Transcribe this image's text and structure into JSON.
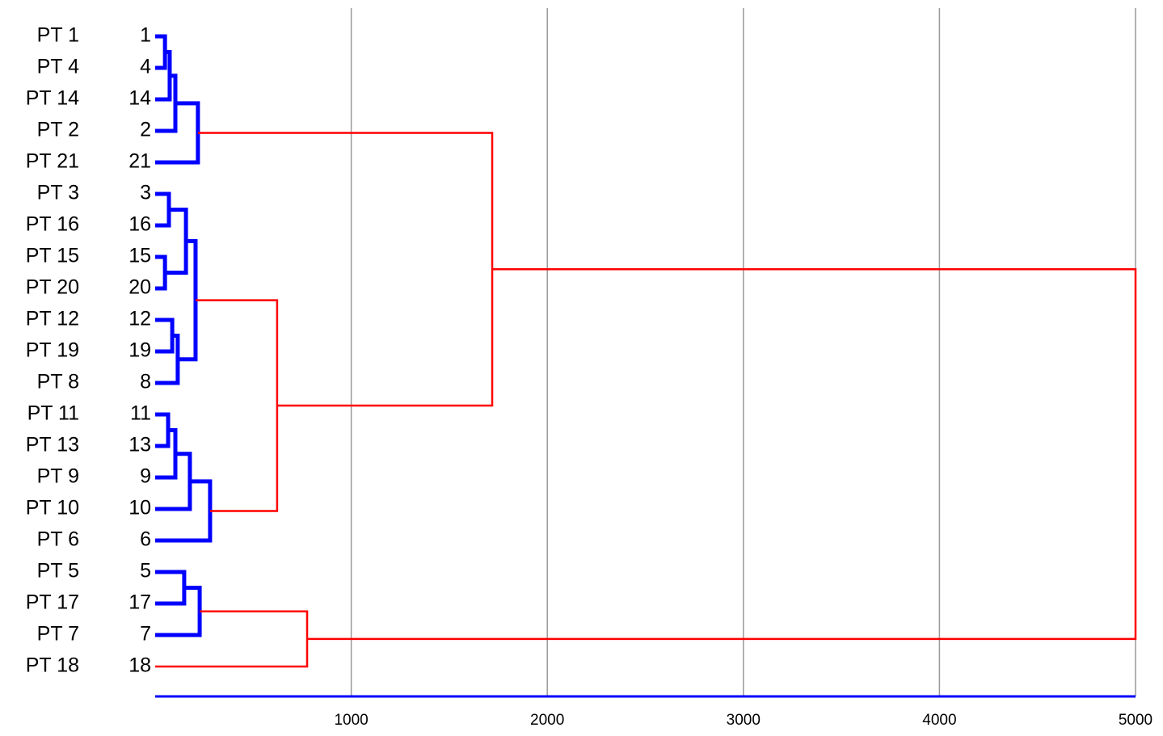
{
  "chart_data": {
    "type": "dendrogram",
    "xlim": [
      0,
      5000
    ],
    "xticks": [
      1000,
      2000,
      3000,
      4000,
      5000
    ],
    "grid": true,
    "tree": {
      "height": 5000,
      "color": "#ff0000",
      "children": [
        {
          "height": 1719,
          "color": "#ff0000",
          "children": [
            {
              "height": 218,
              "color": "#0000ff",
              "children": [
                {
                  "height": 103,
                  "color": "#0000ff",
                  "children": [
                    {
                      "height": 74,
                      "color": "#0000ff",
                      "children": [
                        {
                          "height": 50,
                          "color": "#0000ff",
                          "children": [
                            {
                              "name": "PT 1",
                              "id": "1"
                            },
                            {
                              "name": "PT 4",
                              "id": "4"
                            }
                          ]
                        },
                        {
                          "name": "PT 14",
                          "id": "14"
                        }
                      ]
                    },
                    {
                      "name": "PT 2",
                      "id": "2"
                    }
                  ]
                },
                {
                  "name": "PT 21",
                  "id": "21"
                }
              ]
            },
            {
              "height": 622,
              "color": "#ff0000",
              "children": [
                {
                  "height": 206,
                  "color": "#0000ff",
                  "children": [
                    {
                      "height": 157,
                      "color": "#0000ff",
                      "children": [
                        {
                          "height": 70,
                          "color": "#0000ff",
                          "children": [
                            {
                              "name": "PT 3",
                              "id": "3"
                            },
                            {
                              "name": "PT 16",
                              "id": "16"
                            }
                          ]
                        },
                        {
                          "height": 50,
                          "color": "#0000ff",
                          "children": [
                            {
                              "name": "PT 15",
                              "id": "15"
                            },
                            {
                              "name": "PT 20",
                              "id": "20"
                            }
                          ]
                        }
                      ]
                    },
                    {
                      "height": 115,
                      "color": "#0000ff",
                      "children": [
                        {
                          "height": 87,
                          "color": "#0000ff",
                          "children": [
                            {
                              "name": "PT 12",
                              "id": "12"
                            },
                            {
                              "name": "PT 19",
                              "id": "19"
                            }
                          ]
                        },
                        {
                          "name": "PT 8",
                          "id": "8"
                        }
                      ]
                    }
                  ]
                },
                {
                  "height": 280,
                  "color": "#0000ff",
                  "children": [
                    {
                      "height": 177,
                      "color": "#0000ff",
                      "children": [
                        {
                          "height": 103,
                          "color": "#0000ff",
                          "children": [
                            {
                              "height": 66,
                              "color": "#0000ff",
                              "children": [
                                {
                                  "name": "PT 11",
                                  "id": "11"
                                },
                                {
                                  "name": "PT 13",
                                  "id": "13"
                                }
                              ]
                            },
                            {
                              "name": "PT 9",
                              "id": "9"
                            }
                          ]
                        },
                        {
                          "name": "PT 10",
                          "id": "10"
                        }
                      ]
                    },
                    {
                      "name": "PT 6",
                      "id": "6"
                    }
                  ]
                }
              ]
            }
          ]
        },
        {
          "height": 775,
          "color": "#ff0000",
          "children": [
            {
              "height": 227,
              "color": "#0000ff",
              "children": [
                {
                  "height": 148,
                  "color": "#0000ff",
                  "children": [
                    {
                      "name": "PT 5",
                      "id": "5"
                    },
                    {
                      "name": "PT 17",
                      "id": "17"
                    }
                  ]
                },
                {
                  "name": "PT 7",
                  "id": "7"
                }
              ]
            },
            {
              "name": "PT 18",
              "id": "18"
            }
          ]
        }
      ]
    }
  }
}
